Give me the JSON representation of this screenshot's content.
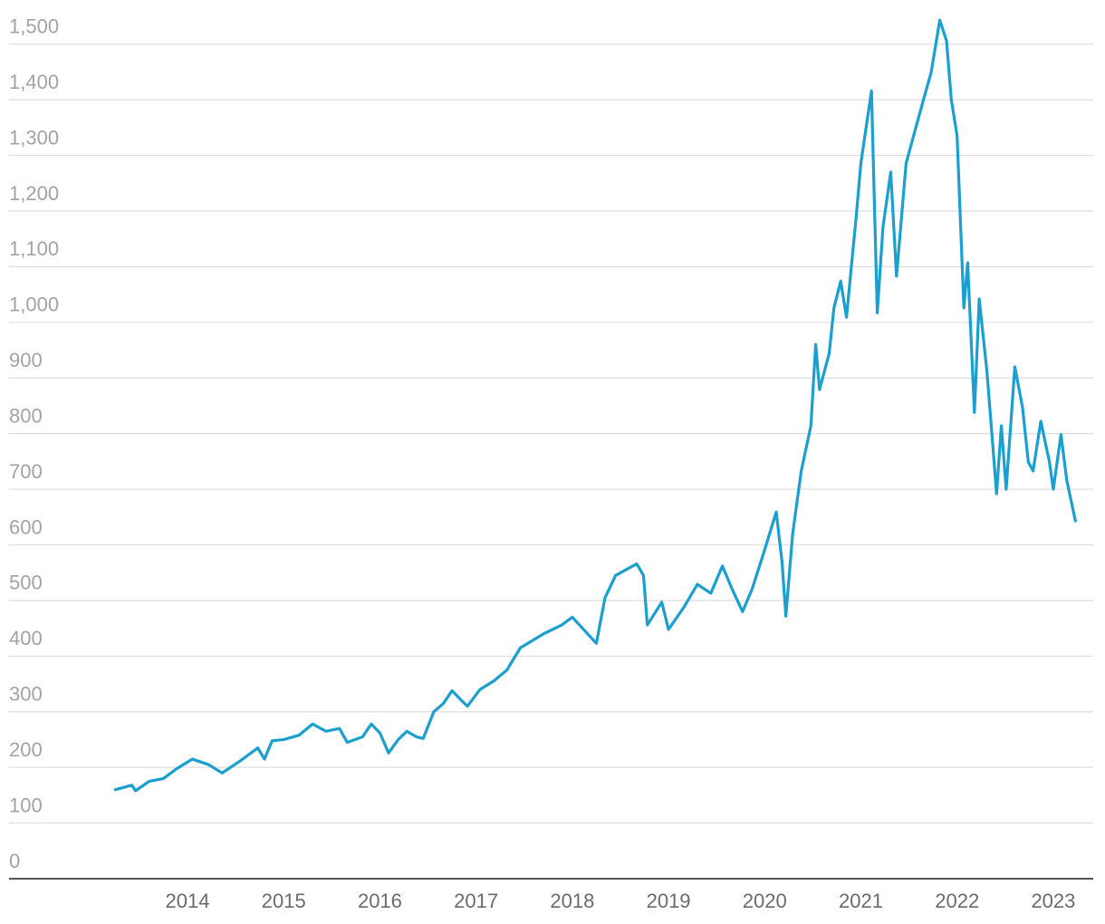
{
  "chart_data": {
    "type": "line",
    "x": [
      2013.25,
      2013.42,
      2013.46,
      2013.6,
      2013.75,
      2013.89,
      2014.05,
      2014.22,
      2014.36,
      2014.55,
      2014.73,
      2014.8,
      2014.88,
      2015.0,
      2015.16,
      2015.3,
      2015.44,
      2015.58,
      2015.66,
      2015.82,
      2015.91,
      2016.0,
      2016.09,
      2016.19,
      2016.28,
      2016.38,
      2016.45,
      2016.56,
      2016.66,
      2016.75,
      2016.85,
      2016.91,
      2017.04,
      2017.18,
      2017.32,
      2017.46,
      2017.7,
      2017.89,
      2018.0,
      2018.08,
      2018.25,
      2018.34,
      2018.45,
      2018.67,
      2018.74,
      2018.78,
      2018.93,
      2019.0,
      2019.16,
      2019.3,
      2019.44,
      2019.56,
      2019.66,
      2019.77,
      2019.87,
      2019.99,
      2020.12,
      2020.18,
      2020.22,
      2020.29,
      2020.38,
      2020.48,
      2020.53,
      2020.57,
      2020.67,
      2020.72,
      2020.79,
      2020.85,
      2020.95,
      2021.0,
      2021.11,
      2021.17,
      2021.23,
      2021.31,
      2021.37,
      2021.47,
      2021.56,
      2021.65,
      2021.73,
      2021.82,
      2021.89,
      2021.94,
      2022.0,
      2022.07,
      2022.11,
      2022.18,
      2022.23,
      2022.31,
      2022.37,
      2022.41,
      2022.46,
      2022.51,
      2022.6,
      2022.68,
      2022.74,
      2022.79,
      2022.87,
      2022.96,
      2023.0,
      2023.08,
      2023.14,
      2023.23
    ],
    "series": [
      {
        "color": "#1a9fcf",
        "values": [
          160,
          168,
          158,
          175,
          180,
          198,
          215,
          205,
          190,
          212,
          235,
          215,
          248,
          250,
          258,
          278,
          265,
          270,
          245,
          255,
          278,
          262,
          226,
          250,
          265,
          255,
          252,
          300,
          315,
          338,
          320,
          310,
          340,
          355,
          375,
          415,
          440,
          456,
          470,
          455,
          423,
          505,
          545,
          566,
          545,
          456,
          497,
          448,
          488,
          529,
          513,
          562,
          521,
          480,
          521,
          586,
          659,
          570,
          472,
          619,
          733,
          814,
          960,
          879,
          944,
          1026,
          1074,
          1009,
          1188,
          1286,
          1416,
          1017,
          1172,
          1270,
          1083,
          1286,
          1343,
          1400,
          1449,
          1543,
          1506,
          1400,
          1335,
          1026,
          1107,
          838,
          1042,
          912,
          781,
          692,
          814,
          700,
          920,
          847,
          749,
          733,
          822,
          749,
          700,
          798,
          716,
          643
        ]
      }
    ],
    "xlim": [
      2012.145,
      2023.415
    ],
    "xticks": [
      2014,
      2015,
      2016,
      2017,
      2018,
      2019,
      2020,
      2021,
      2022,
      2023
    ],
    "ylim": [
      0,
      1550
    ],
    "yticks": [
      0,
      100,
      200,
      300,
      400,
      500,
      600,
      700,
      800,
      900,
      {
        "value": 1000,
        "label": "1,000"
      },
      {
        "value": 1100,
        "label": "1,100"
      },
      {
        "value": 1200,
        "label": "1,200"
      },
      {
        "value": 1300,
        "label": "1,300"
      },
      {
        "value": 1400,
        "label": "1,400"
      },
      {
        "value": 1500,
        "label": "1,500"
      }
    ],
    "grid": true
  }
}
